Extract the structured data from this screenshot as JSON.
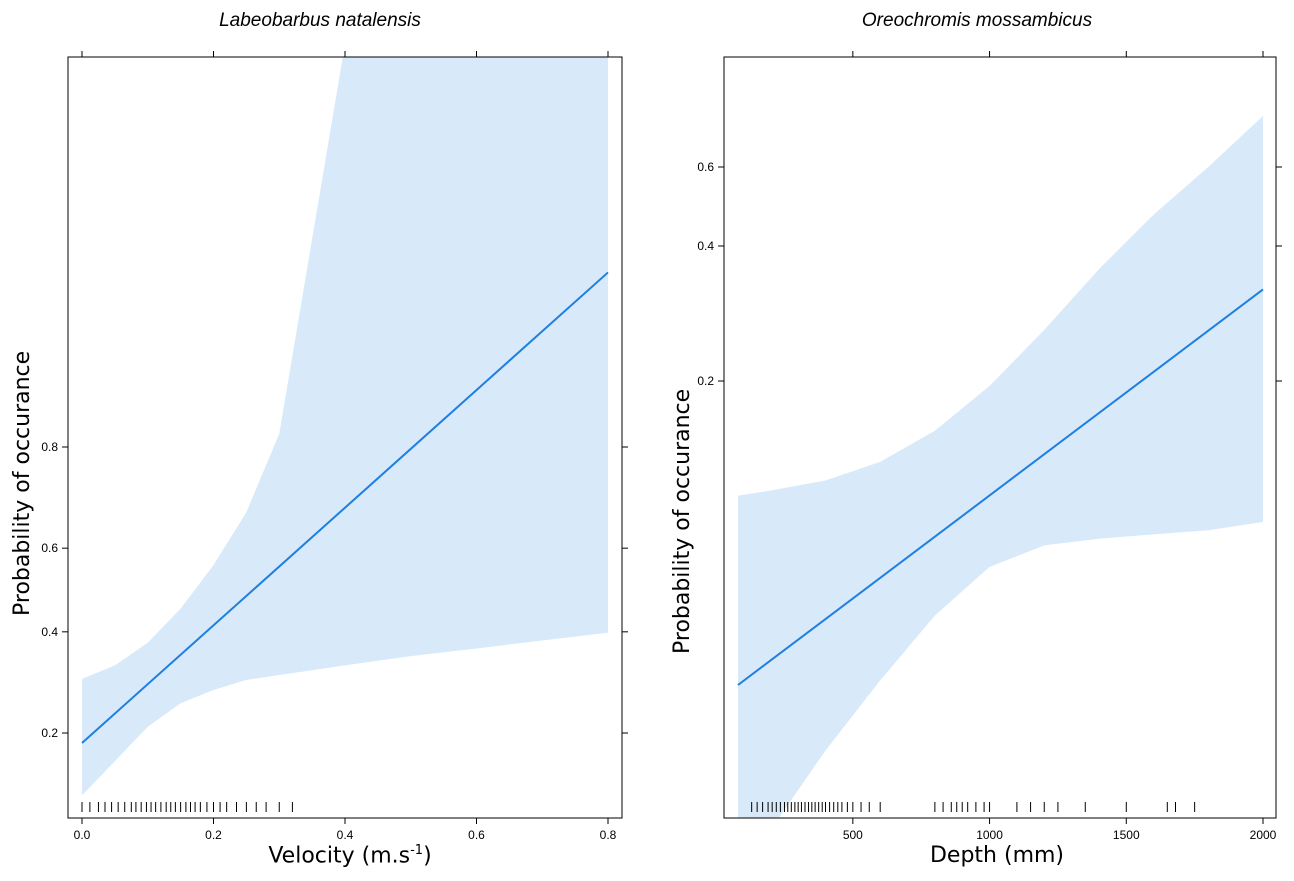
{
  "chart_data": [
    {
      "type": "line",
      "title": "Labeobarbus natalensis",
      "xlabel": "Velocity (m.s",
      "xlabel_sup": "-1",
      "xlabel_end": ")",
      "ylabel": "Probability of occurance",
      "x_ticks": [
        "0.0",
        "0.2",
        "0.4",
        "0.6",
        "0.8"
      ],
      "y_ticks": [
        "0.2",
        "0.4",
        "0.6",
        "0.8"
      ],
      "grid": false,
      "line_color": "#1e7fe0",
      "band_color": "#d8e9fa",
      "series": [
        {
          "x": [
            0.0,
            0.8
          ],
          "y": [
            0.185,
            0.956
          ]
        }
      ],
      "band": {
        "x": [
          0.0,
          0.05,
          0.1,
          0.15,
          0.2,
          0.25,
          0.3,
          0.4,
          0.5,
          0.6,
          0.7,
          0.8
        ],
        "upper": [
          0.297,
          0.325,
          0.375,
          0.455,
          0.56,
          0.68,
          0.82,
          1.09,
          1.42,
          1.78,
          2.18,
          2.67
        ],
        "lower": [
          0.12,
          0.16,
          0.21,
          0.25,
          0.275,
          0.295,
          0.305,
          0.325,
          0.345,
          0.362,
          0.38,
          0.398
        ]
      },
      "rug": [
        0.0,
        0.012,
        0.025,
        0.035,
        0.045,
        0.055,
        0.065,
        0.075,
        0.082,
        0.09,
        0.098,
        0.105,
        0.112,
        0.12,
        0.128,
        0.135,
        0.142,
        0.15,
        0.158,
        0.165,
        0.172,
        0.18,
        0.19,
        0.2,
        0.21,
        0.22,
        0.235,
        0.25,
        0.265,
        0.28,
        0.3,
        0.32
      ]
    },
    {
      "type": "line",
      "title": "Oreochromis mossambicus",
      "xlabel": "Depth (mm)",
      "ylabel": "Probability of occurance",
      "x_ticks": [
        "500",
        "1000",
        "1500",
        "2000"
      ],
      "y_ticks": [
        "0.2",
        "0.4",
        "0.6"
      ],
      "grid": false,
      "line_color": "#1e7fe0",
      "band_color": "#d8e9fa",
      "series": [
        {
          "x": [
            80,
            2000
          ],
          "y": [
            0.042,
            0.32
          ]
        }
      ],
      "band": {
        "x": [
          80,
          200,
          400,
          600,
          800,
          1000,
          1200,
          1400,
          1600,
          1800,
          2000
        ],
        "upper": [
          0.111,
          0.114,
          0.12,
          0.132,
          0.155,
          0.195,
          0.26,
          0.355,
          0.47,
          0.6,
          0.78
        ],
        "lower": [
          0.013,
          0.02,
          0.03,
          0.043,
          0.06,
          0.077,
          0.086,
          0.089,
          0.091,
          0.093,
          0.097
        ]
      },
      "rug": [
        130,
        150,
        170,
        190,
        205,
        220,
        235,
        250,
        262,
        275,
        288,
        300,
        312,
        325,
        338,
        350,
        362,
        375,
        388,
        400,
        415,
        430,
        445,
        460,
        480,
        500,
        530,
        560,
        600,
        800,
        830,
        860,
        880,
        900,
        920,
        950,
        980,
        1000,
        1100,
        1150,
        1200,
        1250,
        1350,
        1500,
        1650,
        1680,
        1750
      ]
    }
  ]
}
